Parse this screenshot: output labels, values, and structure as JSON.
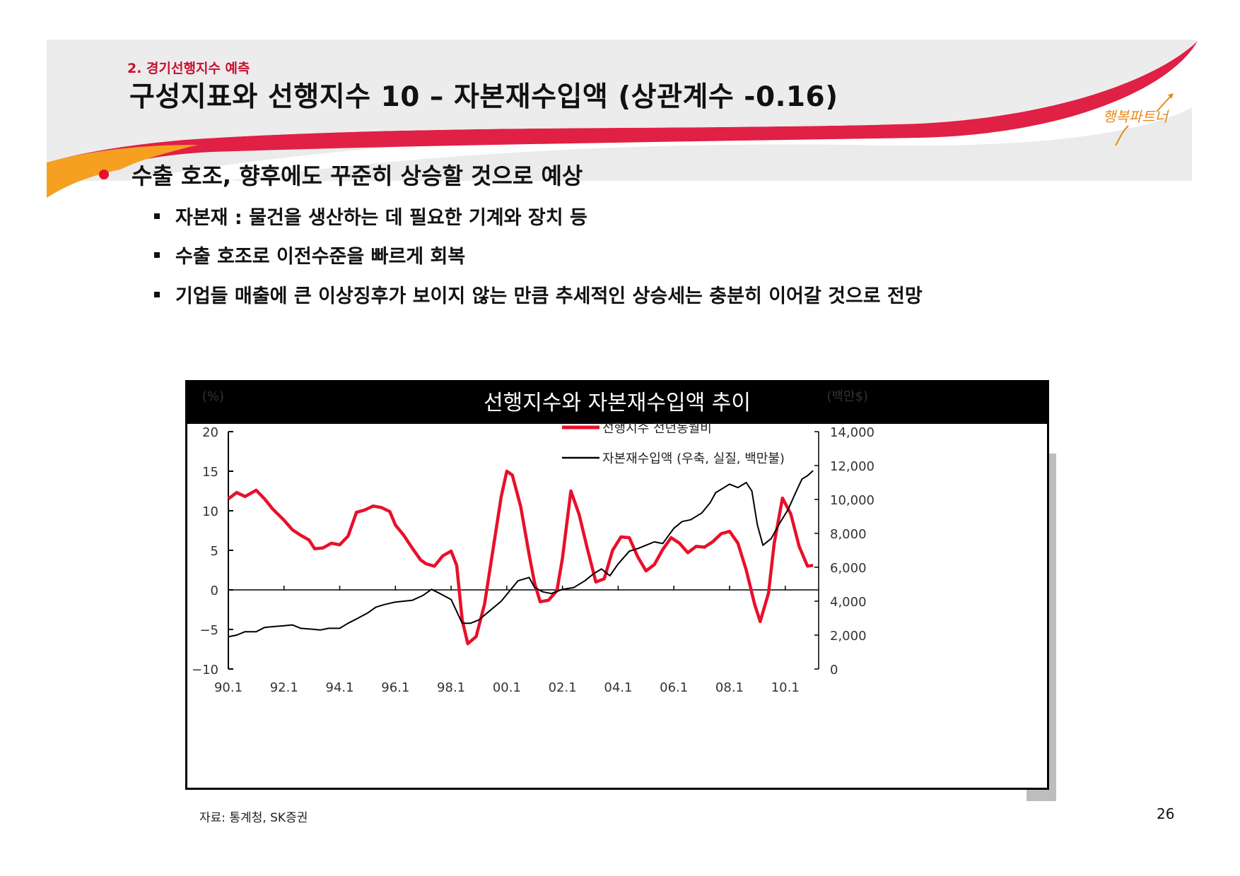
{
  "header": {
    "section_label": "2. 경기선행지수 예측",
    "title": "구성지표와 선행지수 10 – 자본재수입액 (상관계수 -0.16)",
    "logo_text": "행복파트너"
  },
  "content": {
    "main_bullet": "수출 호조, 향후에도 꾸준히 상승할 것으로 예상",
    "sub_bullets": [
      "자본재 : 물건을 생산하는 데 필요한 기계와 장치 등",
      "수출 호조로 이전수준을 빠르게 회복",
      "기업들 매출에 큰 이상징후가 보이지 않는 만큼 추세적인 상승세는 충분히 이어갈 것으로 전망"
    ]
  },
  "colors": {
    "accent": "#e8102a",
    "orange": "#f5a020",
    "black": "#000000"
  },
  "chart_data": {
    "type": "line",
    "title": "선행지수와 자본재수입액 추이",
    "left_unit": "(%)",
    "right_unit": "(백만$)",
    "x_ticks": [
      "90.1",
      "92.1",
      "94.1",
      "96.1",
      "98.1",
      "00.1",
      "02.1",
      "04.1",
      "06.1",
      "08.1",
      "10.1"
    ],
    "y_left_ticks": [
      "20",
      "15",
      "10",
      "5",
      "0",
      "−5",
      "−10"
    ],
    "y_right_ticks": [
      "14,000",
      "12,000",
      "10,000",
      "8,000",
      "6,000",
      "4,000",
      "2,000",
      "0"
    ],
    "y_left_range": [
      -10,
      20
    ],
    "y_right_range": [
      0,
      14000
    ],
    "x_range": [
      1990.0,
      2011.2
    ],
    "series": [
      {
        "name": "선행지수 전년동월비",
        "axis": "left",
        "color": "#e8102a",
        "points": [
          [
            1990.0,
            11.5
          ],
          [
            1990.3,
            12.3
          ],
          [
            1990.6,
            11.8
          ],
          [
            1991.0,
            12.6
          ],
          [
            1991.3,
            11.5
          ],
          [
            1991.6,
            10.2
          ],
          [
            1992.0,
            8.8
          ],
          [
            1992.3,
            7.6
          ],
          [
            1992.6,
            6.9
          ],
          [
            1992.9,
            6.3
          ],
          [
            1993.1,
            5.2
          ],
          [
            1993.4,
            5.3
          ],
          [
            1993.7,
            5.9
          ],
          [
            1994.0,
            5.7
          ],
          [
            1994.3,
            6.8
          ],
          [
            1994.6,
            9.8
          ],
          [
            1994.9,
            10.1
          ],
          [
            1995.2,
            10.6
          ],
          [
            1995.5,
            10.4
          ],
          [
            1995.8,
            9.9
          ],
          [
            1996.0,
            8.2
          ],
          [
            1996.3,
            6.9
          ],
          [
            1996.6,
            5.3
          ],
          [
            1996.9,
            3.8
          ],
          [
            1997.1,
            3.3
          ],
          [
            1997.4,
            3.0
          ],
          [
            1997.7,
            4.3
          ],
          [
            1998.0,
            4.9
          ],
          [
            1998.2,
            3.1
          ],
          [
            1998.4,
            -3.8
          ],
          [
            1998.6,
            -6.8
          ],
          [
            1998.9,
            -5.9
          ],
          [
            1999.2,
            -1.8
          ],
          [
            1999.5,
            5.0
          ],
          [
            1999.8,
            11.8
          ],
          [
            2000.0,
            15.0
          ],
          [
            2000.2,
            14.5
          ],
          [
            2000.5,
            10.5
          ],
          [
            2000.8,
            4.5
          ],
          [
            2001.0,
            0.8
          ],
          [
            2001.2,
            -1.5
          ],
          [
            2001.5,
            -1.3
          ],
          [
            2001.8,
            -0.1
          ],
          [
            2002.0,
            4.0
          ],
          [
            2002.3,
            12.5
          ],
          [
            2002.6,
            9.5
          ],
          [
            2002.9,
            5.1
          ],
          [
            2003.2,
            1.0
          ],
          [
            2003.5,
            1.4
          ],
          [
            2003.8,
            5.0
          ],
          [
            2004.1,
            6.7
          ],
          [
            2004.4,
            6.6
          ],
          [
            2004.7,
            4.2
          ],
          [
            2005.0,
            2.4
          ],
          [
            2005.3,
            3.2
          ],
          [
            2005.6,
            5.1
          ],
          [
            2005.9,
            6.6
          ],
          [
            2006.2,
            5.9
          ],
          [
            2006.5,
            4.7
          ],
          [
            2006.8,
            5.5
          ],
          [
            2007.1,
            5.4
          ],
          [
            2007.4,
            6.1
          ],
          [
            2007.7,
            7.1
          ],
          [
            2008.0,
            7.4
          ],
          [
            2008.3,
            5.9
          ],
          [
            2008.6,
            2.5
          ],
          [
            2008.9,
            -1.8
          ],
          [
            2009.1,
            -4.0
          ],
          [
            2009.4,
            -0.4
          ],
          [
            2009.6,
            5.8
          ],
          [
            2009.9,
            11.6
          ],
          [
            2010.2,
            9.6
          ],
          [
            2010.5,
            5.5
          ],
          [
            2010.8,
            3.0
          ],
          [
            2011.0,
            3.1
          ]
        ]
      },
      {
        "name": "자본재수입액 (우축, 실질, 백만불)",
        "axis": "right",
        "color": "#000000",
        "points": [
          [
            1990.0,
            1900
          ],
          [
            1990.3,
            2000
          ],
          [
            1990.6,
            2200
          ],
          [
            1991.0,
            2200
          ],
          [
            1991.3,
            2450
          ],
          [
            1991.6,
            2500
          ],
          [
            1992.0,
            2550
          ],
          [
            1992.3,
            2600
          ],
          [
            1992.6,
            2400
          ],
          [
            1993.0,
            2350
          ],
          [
            1993.3,
            2300
          ],
          [
            1993.6,
            2400
          ],
          [
            1994.0,
            2400
          ],
          [
            1994.3,
            2700
          ],
          [
            1994.6,
            2950
          ],
          [
            1995.0,
            3300
          ],
          [
            1995.3,
            3650
          ],
          [
            1995.6,
            3800
          ],
          [
            1996.0,
            3950
          ],
          [
            1996.3,
            4000
          ],
          [
            1996.6,
            4050
          ],
          [
            1997.0,
            4350
          ],
          [
            1997.3,
            4700
          ],
          [
            1997.6,
            4450
          ],
          [
            1998.0,
            4100
          ],
          [
            1998.2,
            3400
          ],
          [
            1998.4,
            2700
          ],
          [
            1998.7,
            2700
          ],
          [
            1999.0,
            2900
          ],
          [
            1999.4,
            3450
          ],
          [
            1999.8,
            4000
          ],
          [
            2000.1,
            4600
          ],
          [
            2000.4,
            5200
          ],
          [
            2000.8,
            5400
          ],
          [
            2001.0,
            4800
          ],
          [
            2001.3,
            4550
          ],
          [
            2001.6,
            4450
          ],
          [
            2002.0,
            4700
          ],
          [
            2002.4,
            4800
          ],
          [
            2002.8,
            5200
          ],
          [
            2003.1,
            5600
          ],
          [
            2003.4,
            5900
          ],
          [
            2003.7,
            5500
          ],
          [
            2004.0,
            6200
          ],
          [
            2004.4,
            6950
          ],
          [
            2004.7,
            7100
          ],
          [
            2005.0,
            7300
          ],
          [
            2005.3,
            7500
          ],
          [
            2005.6,
            7400
          ],
          [
            2006.0,
            8300
          ],
          [
            2006.3,
            8700
          ],
          [
            2006.6,
            8800
          ],
          [
            2007.0,
            9200
          ],
          [
            2007.3,
            9800
          ],
          [
            2007.5,
            10400
          ],
          [
            2007.8,
            10700
          ],
          [
            2008.0,
            10900
          ],
          [
            2008.3,
            10700
          ],
          [
            2008.6,
            11000
          ],
          [
            2008.8,
            10500
          ],
          [
            2009.0,
            8500
          ],
          [
            2009.2,
            7300
          ],
          [
            2009.5,
            7700
          ],
          [
            2009.8,
            8600
          ],
          [
            2010.1,
            9400
          ],
          [
            2010.4,
            10500
          ],
          [
            2010.6,
            11200
          ],
          [
            2010.8,
            11400
          ],
          [
            2011.0,
            11700
          ]
        ]
      }
    ],
    "zero_line": true
  },
  "footer": {
    "source": "자료: 통계청, SK증권",
    "page_number": "26"
  }
}
